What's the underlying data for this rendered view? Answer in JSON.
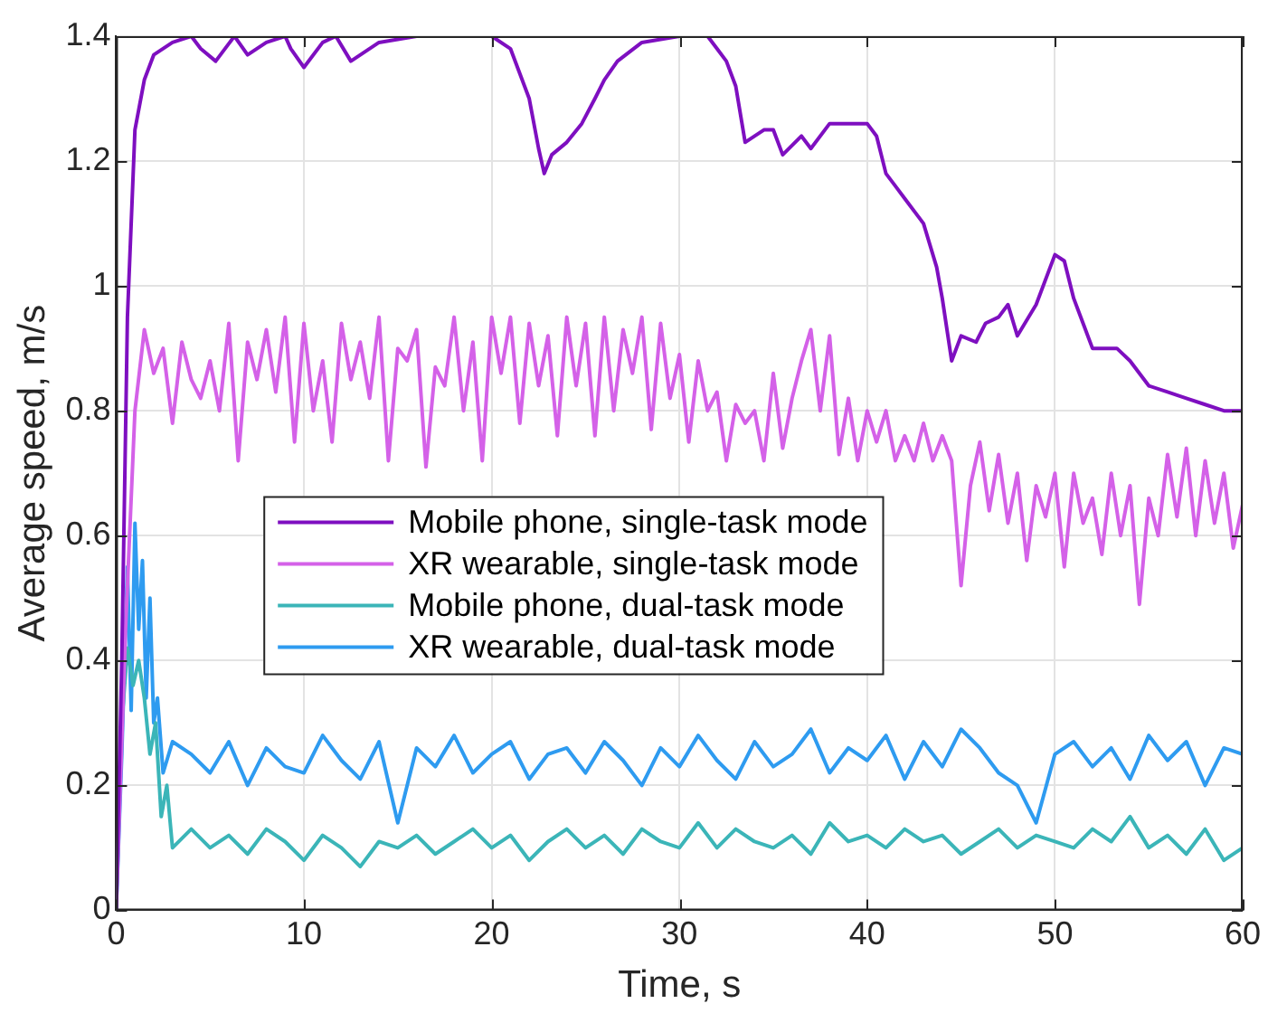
{
  "chart_data": {
    "type": "line",
    "xlabel": "Time, s",
    "ylabel": "Average speed, m/s",
    "xlim": [
      0,
      60
    ],
    "xticks": [
      0,
      10,
      20,
      30,
      40,
      50,
      60
    ],
    "ylim": [
      0,
      1.4
    ],
    "yticks": [
      0,
      0.2,
      0.4,
      0.6,
      0.8,
      1,
      1.2,
      1.4
    ],
    "grid": true,
    "legend": "center left",
    "marker": "none",
    "line_style": "solid",
    "series": [
      {
        "name": "Mobile phone, single-task mode",
        "color": "#7e0fc0",
        "x": [
          0,
          0.3,
          0.6,
          1,
          1.5,
          2,
          3,
          4,
          4.5,
          5.3,
          6.3,
          7,
          8,
          9,
          9.3,
          10,
          11,
          11.7,
          12.5,
          14,
          16,
          20,
          21,
          22,
          22.5,
          22.8,
          23.2,
          24,
          24.8,
          25.5,
          26,
          26.7,
          28,
          30,
          31.5,
          32,
          32.5,
          33,
          33.5,
          34.5,
          35,
          35.5,
          36.5,
          37,
          38,
          40,
          40.5,
          41,
          41.5,
          42,
          43,
          43.7,
          44,
          44.5,
          45,
          45.8,
          46.3,
          47,
          47.5,
          48,
          49,
          50,
          50.5,
          51,
          51.5,
          52,
          52.5,
          53.3,
          54,
          55,
          56,
          57,
          58,
          59,
          60
        ],
        "values": [
          0,
          0.4,
          0.95,
          1.25,
          1.33,
          1.37,
          1.39,
          1.4,
          1.38,
          1.36,
          1.4,
          1.37,
          1.39,
          1.4,
          1.38,
          1.35,
          1.39,
          1.4,
          1.36,
          1.39,
          1.4,
          1.4,
          1.38,
          1.3,
          1.22,
          1.18,
          1.21,
          1.23,
          1.26,
          1.3,
          1.33,
          1.36,
          1.39,
          1.4,
          1.4,
          1.38,
          1.36,
          1.32,
          1.23,
          1.25,
          1.25,
          1.21,
          1.24,
          1.22,
          1.26,
          1.26,
          1.24,
          1.18,
          1.16,
          1.14,
          1.1,
          1.03,
          0.98,
          0.88,
          0.92,
          0.91,
          0.94,
          0.95,
          0.97,
          0.92,
          0.97,
          1.05,
          1.04,
          0.98,
          0.94,
          0.9,
          0.9,
          0.9,
          0.88,
          0.84,
          0.83,
          0.82,
          0.81,
          0.8,
          0.8
        ]
      },
      {
        "name": "XR wearable, single-task mode",
        "color": "#d461e8",
        "x": [
          0,
          0.5,
          1,
          1.5,
          2,
          2.5,
          3,
          3.5,
          4,
          4.5,
          5,
          5.5,
          6,
          6.5,
          7,
          7.5,
          8,
          8.5,
          9,
          9.5,
          10,
          10.5,
          11,
          11.5,
          12,
          12.5,
          13,
          13.5,
          14,
          14.5,
          15,
          15.5,
          16,
          16.5,
          17,
          17.5,
          18,
          18.5,
          19,
          19.5,
          20,
          20.5,
          21,
          21.5,
          22,
          22.5,
          23,
          23.5,
          24,
          24.5,
          25,
          25.5,
          26,
          26.5,
          27,
          27.5,
          28,
          28.5,
          29,
          29.5,
          30,
          30.5,
          31,
          31.5,
          32,
          32.5,
          33,
          33.5,
          34,
          34.5,
          35,
          35.5,
          36,
          36.5,
          37,
          37.5,
          38,
          38.5,
          39,
          39.5,
          40,
          40.5,
          41,
          41.5,
          42,
          42.5,
          43,
          43.5,
          44,
          44.5,
          45,
          45.5,
          46,
          46.5,
          47,
          47.5,
          48,
          48.5,
          49,
          49.5,
          50,
          50.5,
          51,
          51.5,
          52,
          52.5,
          53,
          53.5,
          54,
          54.5,
          55,
          55.5,
          56,
          56.5,
          57,
          57.5,
          58,
          58.5,
          59,
          59.5,
          60
        ],
        "values": [
          0,
          0.45,
          0.8,
          0.93,
          0.86,
          0.9,
          0.78,
          0.91,
          0.85,
          0.82,
          0.88,
          0.8,
          0.94,
          0.72,
          0.91,
          0.85,
          0.93,
          0.83,
          0.95,
          0.75,
          0.94,
          0.8,
          0.88,
          0.75,
          0.94,
          0.85,
          0.91,
          0.82,
          0.95,
          0.72,
          0.9,
          0.88,
          0.93,
          0.71,
          0.87,
          0.84,
          0.95,
          0.8,
          0.91,
          0.72,
          0.95,
          0.86,
          0.95,
          0.78,
          0.94,
          0.84,
          0.92,
          0.76,
          0.95,
          0.84,
          0.94,
          0.76,
          0.95,
          0.8,
          0.93,
          0.86,
          0.95,
          0.77,
          0.94,
          0.82,
          0.89,
          0.75,
          0.88,
          0.8,
          0.83,
          0.72,
          0.81,
          0.78,
          0.8,
          0.72,
          0.86,
          0.74,
          0.82,
          0.88,
          0.93,
          0.8,
          0.92,
          0.73,
          0.82,
          0.72,
          0.8,
          0.75,
          0.8,
          0.72,
          0.76,
          0.72,
          0.78,
          0.72,
          0.76,
          0.72,
          0.52,
          0.68,
          0.75,
          0.64,
          0.73,
          0.62,
          0.7,
          0.56,
          0.68,
          0.63,
          0.7,
          0.55,
          0.7,
          0.62,
          0.66,
          0.57,
          0.7,
          0.6,
          0.68,
          0.49,
          0.66,
          0.6,
          0.73,
          0.63,
          0.74,
          0.6,
          0.72,
          0.62,
          0.7,
          0.58,
          0.65
        ]
      },
      {
        "name": "Mobile phone, dual-task mode",
        "color": "#3bb5b8",
        "x": [
          0,
          0.3,
          0.6,
          0.9,
          1.2,
          1.5,
          1.8,
          2.1,
          2.4,
          2.7,
          3,
          4,
          5,
          6,
          7,
          8,
          9,
          10,
          11,
          12,
          13,
          14,
          15,
          16,
          17,
          18,
          19,
          20,
          21,
          22,
          23,
          24,
          25,
          26,
          27,
          28,
          29,
          30,
          31,
          32,
          33,
          34,
          35,
          36,
          37,
          38,
          39,
          40,
          41,
          42,
          43,
          44,
          45,
          46,
          47,
          48,
          49,
          50,
          51,
          52,
          53,
          54,
          55,
          56,
          57,
          58,
          59,
          60
        ],
        "values": [
          0,
          0.3,
          0.42,
          0.36,
          0.4,
          0.34,
          0.25,
          0.3,
          0.15,
          0.2,
          0.1,
          0.13,
          0.1,
          0.12,
          0.09,
          0.13,
          0.11,
          0.08,
          0.12,
          0.1,
          0.07,
          0.11,
          0.1,
          0.12,
          0.09,
          0.11,
          0.13,
          0.1,
          0.12,
          0.08,
          0.11,
          0.13,
          0.1,
          0.12,
          0.09,
          0.13,
          0.11,
          0.1,
          0.14,
          0.1,
          0.13,
          0.11,
          0.1,
          0.12,
          0.09,
          0.14,
          0.11,
          0.12,
          0.1,
          0.13,
          0.11,
          0.12,
          0.09,
          0.11,
          0.13,
          0.1,
          0.12,
          0.11,
          0.1,
          0.13,
          0.11,
          0.15,
          0.1,
          0.12,
          0.09,
          0.13,
          0.08,
          0.1
        ]
      },
      {
        "name": "XR wearable, dual-task mode",
        "color": "#2e9bf0",
        "x": [
          0,
          0.3,
          0.6,
          0.8,
          1,
          1.2,
          1.4,
          1.6,
          1.8,
          2,
          2.2,
          2.5,
          3,
          4,
          5,
          6,
          7,
          8,
          9,
          10,
          11,
          12,
          13,
          14,
          15,
          16,
          17,
          18,
          19,
          20,
          21,
          22,
          23,
          24,
          25,
          26,
          27,
          28,
          29,
          30,
          31,
          32,
          33,
          34,
          35,
          36,
          37,
          38,
          39,
          40,
          41,
          42,
          43,
          44,
          45,
          46,
          47,
          48,
          49,
          50,
          51,
          52,
          53,
          54,
          55,
          56,
          57,
          58,
          59,
          60
        ],
        "values": [
          0,
          0.25,
          0.55,
          0.32,
          0.62,
          0.45,
          0.56,
          0.34,
          0.5,
          0.3,
          0.34,
          0.22,
          0.27,
          0.25,
          0.22,
          0.27,
          0.2,
          0.26,
          0.23,
          0.22,
          0.28,
          0.24,
          0.21,
          0.27,
          0.14,
          0.26,
          0.23,
          0.28,
          0.22,
          0.25,
          0.27,
          0.21,
          0.25,
          0.26,
          0.22,
          0.27,
          0.24,
          0.2,
          0.26,
          0.23,
          0.28,
          0.24,
          0.21,
          0.27,
          0.23,
          0.25,
          0.29,
          0.22,
          0.26,
          0.24,
          0.28,
          0.21,
          0.27,
          0.23,
          0.29,
          0.26,
          0.22,
          0.2,
          0.14,
          0.25,
          0.27,
          0.23,
          0.26,
          0.21,
          0.28,
          0.24,
          0.27,
          0.2,
          0.26,
          0.25
        ]
      }
    ]
  }
}
